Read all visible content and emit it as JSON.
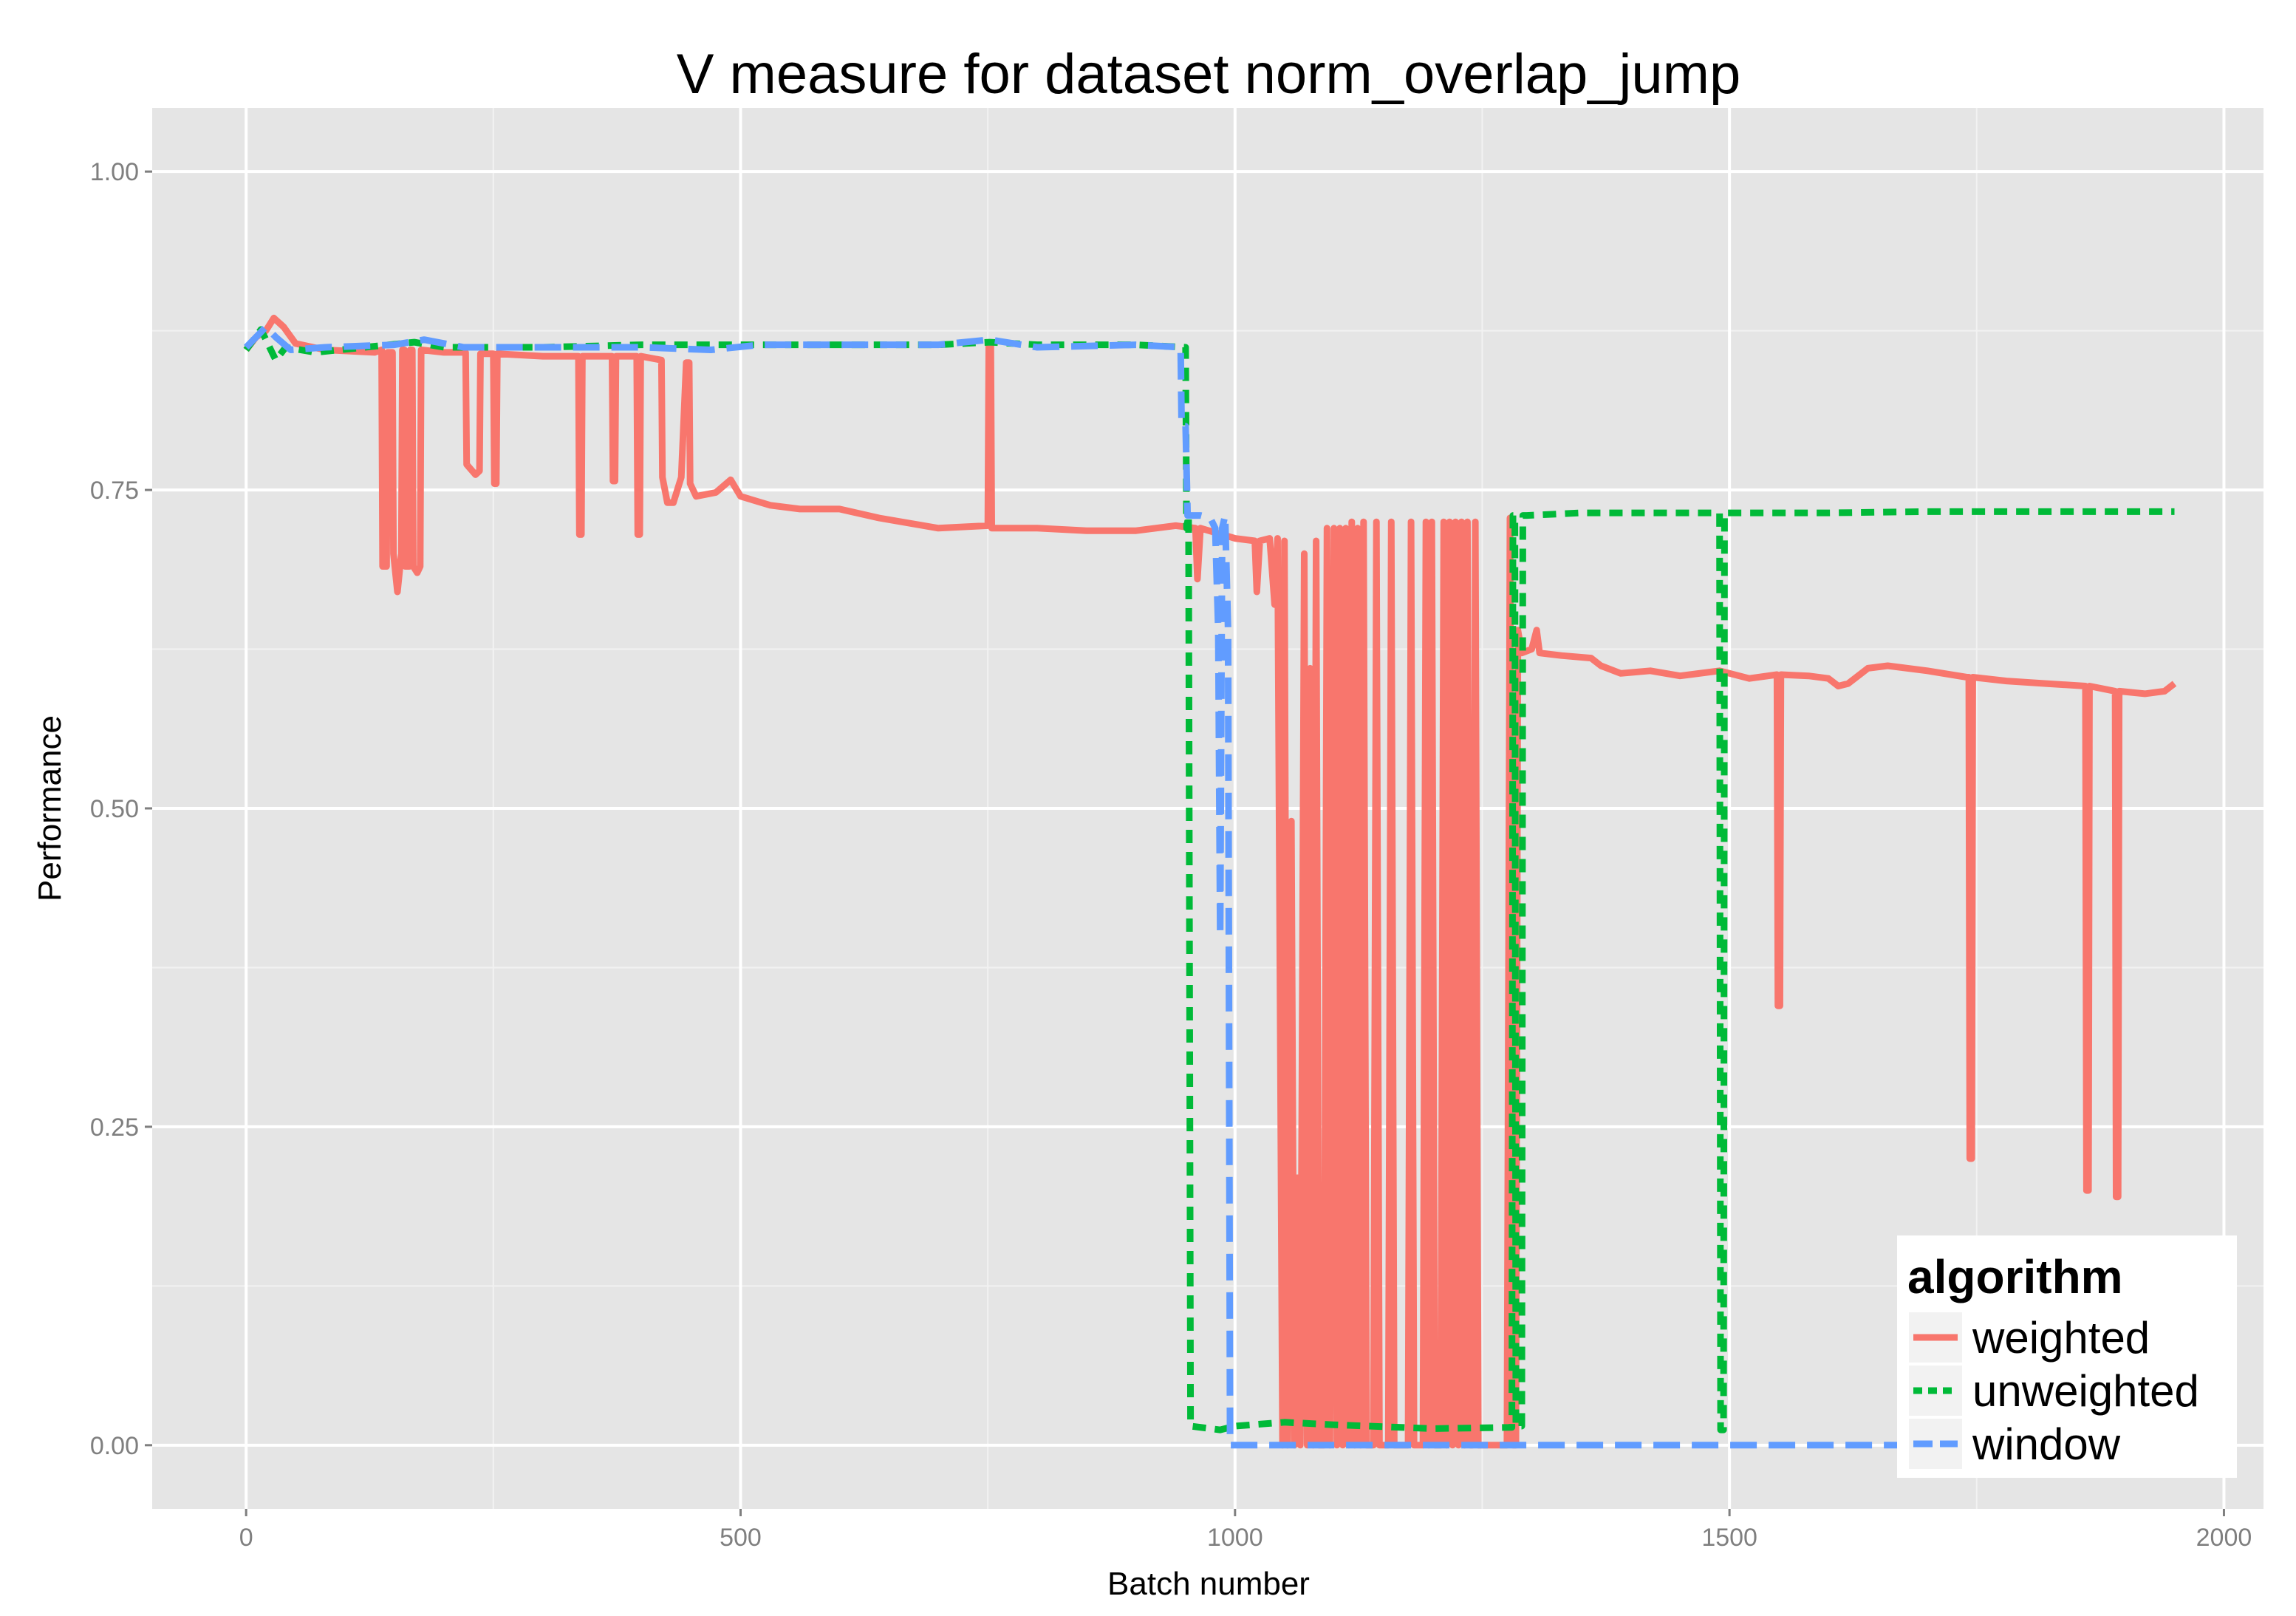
{
  "chart_data": {
    "type": "line",
    "title": "V measure for dataset norm_overlap_jump",
    "xlabel": "Batch number",
    "ylabel": "Performance",
    "xlim": [
      -95,
      2040
    ],
    "ylim": [
      -0.05,
      1.05
    ],
    "x_ticks": [
      0,
      500,
      1000,
      1500,
      2000
    ],
    "x_tick_labels": [
      "0",
      "500",
      "1000",
      "1500",
      "2000"
    ],
    "y_ticks": [
      0,
      0.25,
      0.5,
      0.75,
      1
    ],
    "y_tick_labels": [
      "0.00",
      "0.25",
      "0.50",
      "0.75",
      "1.00"
    ],
    "grid": true,
    "legend": {
      "title": "algorithm",
      "position": "bottom-right",
      "entries": [
        {
          "label": "weighted",
          "color": "#F8766D",
          "dash": "solid"
        },
        {
          "label": "unweighted",
          "color": "#00BA38",
          "dash": "dashed"
        },
        {
          "label": "window",
          "color": "#619CFF",
          "dash": "longdash"
        }
      ]
    },
    "series": [
      {
        "name": "weighted",
        "color": "#F8766D",
        "points": [
          [
            0,
            0.86
          ],
          [
            10,
            0.87
          ],
          [
            20,
            0.875
          ],
          [
            28,
            0.885
          ],
          [
            38,
            0.878
          ],
          [
            50,
            0.865
          ],
          [
            80,
            0.86
          ],
          [
            130,
            0.858
          ],
          [
            137,
            0.86
          ],
          [
            138,
            0.69
          ],
          [
            142,
            0.69
          ],
          [
            143,
            0.858
          ],
          [
            148,
            0.858
          ],
          [
            149,
            0.7
          ],
          [
            153,
            0.67
          ],
          [
            157,
            0.7
          ],
          [
            158,
            0.86
          ],
          [
            160,
            0.86
          ],
          [
            161,
            0.69
          ],
          [
            165,
            0.69
          ],
          [
            166,
            0.86
          ],
          [
            168,
            0.86
          ],
          [
            169,
            0.69
          ],
          [
            173,
            0.685
          ],
          [
            176,
            0.69
          ],
          [
            177,
            0.86
          ],
          [
            200,
            0.858
          ],
          [
            222,
            0.858
          ],
          [
            223,
            0.77
          ],
          [
            232,
            0.762
          ],
          [
            236,
            0.765
          ],
          [
            237,
            0.857
          ],
          [
            250,
            0.857
          ],
          [
            251,
            0.755
          ],
          [
            253,
            0.755
          ],
          [
            254,
            0.857
          ],
          [
            300,
            0.855
          ],
          [
            336,
            0.855
          ],
          [
            337,
            0.715
          ],
          [
            339,
            0.715
          ],
          [
            340,
            0.855
          ],
          [
            370,
            0.855
          ],
          [
            371,
            0.757
          ],
          [
            373,
            0.757
          ],
          [
            374,
            0.855
          ],
          [
            395,
            0.855
          ],
          [
            396,
            0.715
          ],
          [
            398,
            0.715
          ],
          [
            399,
            0.855
          ],
          [
            420,
            0.852
          ],
          [
            421,
            0.76
          ],
          [
            426,
            0.74
          ],
          [
            432,
            0.74
          ],
          [
            440,
            0.76
          ],
          [
            445,
            0.85
          ],
          [
            448,
            0.85
          ],
          [
            449,
            0.755
          ],
          [
            455,
            0.745
          ],
          [
            475,
            0.748
          ],
          [
            490,
            0.758
          ],
          [
            500,
            0.745
          ],
          [
            530,
            0.738
          ],
          [
            560,
            0.735
          ],
          [
            600,
            0.735
          ],
          [
            640,
            0.728
          ],
          [
            700,
            0.72
          ],
          [
            750,
            0.722
          ],
          [
            751,
            0.865
          ],
          [
            753,
            0.865
          ],
          [
            754,
            0.72
          ],
          [
            800,
            0.72
          ],
          [
            850,
            0.718
          ],
          [
            900,
            0.718
          ],
          [
            940,
            0.722
          ],
          [
            960,
            0.72
          ],
          [
            962,
            0.68
          ],
          [
            965,
            0.72
          ],
          [
            1000,
            0.712
          ],
          [
            1020,
            0.71
          ],
          [
            1022,
            0.67
          ],
          [
            1025,
            0.71
          ],
          [
            1035,
            0.712
          ],
          [
            1040,
            0.66
          ],
          [
            1043,
            0.712
          ],
          [
            1048,
            0.0
          ],
          [
            1050,
            0.71
          ],
          [
            1053,
            0.0
          ],
          [
            1057,
            0.49
          ],
          [
            1060,
            0.0
          ],
          [
            1063,
            0.21
          ],
          [
            1066,
            0.0
          ],
          [
            1070,
            0.7
          ],
          [
            1073,
            0.0
          ],
          [
            1076,
            0.61
          ],
          [
            1079,
            0.0
          ],
          [
            1082,
            0.71
          ],
          [
            1085,
            0.0
          ],
          [
            1090,
            0.0
          ],
          [
            1093,
            0.72
          ],
          [
            1096,
            0.0
          ],
          [
            1100,
            0.72
          ],
          [
            1103,
            0.0
          ],
          [
            1106,
            0.72
          ],
          [
            1109,
            0.0
          ],
          [
            1112,
            0.72
          ],
          [
            1115,
            0.0
          ],
          [
            1118,
            0.725
          ],
          [
            1121,
            0.0
          ],
          [
            1124,
            0.72
          ],
          [
            1127,
            0.0
          ],
          [
            1130,
            0.725
          ],
          [
            1133,
            0.0
          ],
          [
            1140,
            0.0
          ],
          [
            1143,
            0.725
          ],
          [
            1146,
            0.0
          ],
          [
            1155,
            0.0
          ],
          [
            1158,
            0.725
          ],
          [
            1161,
            0.0
          ],
          [
            1175,
            0.0
          ],
          [
            1178,
            0.725
          ],
          [
            1181,
            0.0
          ],
          [
            1190,
            0.0
          ],
          [
            1193,
            0.725
          ],
          [
            1196,
            0.0
          ],
          [
            1199,
            0.725
          ],
          [
            1202,
            0.0
          ],
          [
            1208,
            0.0
          ],
          [
            1211,
            0.725
          ],
          [
            1214,
            0.0
          ],
          [
            1217,
            0.725
          ],
          [
            1220,
            0.0
          ],
          [
            1223,
            0.725
          ],
          [
            1226,
            0.0
          ],
          [
            1229,
            0.725
          ],
          [
            1232,
            0.0
          ],
          [
            1235,
            0.725
          ],
          [
            1238,
            0.0
          ],
          [
            1240,
            0.0
          ],
          [
            1243,
            0.725
          ],
          [
            1246,
            0.0
          ],
          [
            1275,
            0.0
          ],
          [
            1278,
            0.728
          ],
          [
            1281,
            0.0
          ],
          [
            1284,
            0.0
          ],
          [
            1286,
            0.64
          ],
          [
            1290,
            0.622
          ],
          [
            1300,
            0.625
          ],
          [
            1305,
            0.64
          ],
          [
            1308,
            0.622
          ],
          [
            1330,
            0.62
          ],
          [
            1360,
            0.618
          ],
          [
            1370,
            0.612
          ],
          [
            1390,
            0.606
          ],
          [
            1420,
            0.608
          ],
          [
            1450,
            0.604
          ],
          [
            1490,
            0.608
          ],
          [
            1520,
            0.602
          ],
          [
            1548,
            0.605
          ],
          [
            1549,
            0.345
          ],
          [
            1551,
            0.345
          ],
          [
            1552,
            0.605
          ],
          [
            1580,
            0.604
          ],
          [
            1600,
            0.602
          ],
          [
            1610,
            0.596
          ],
          [
            1620,
            0.598
          ],
          [
            1640,
            0.61
          ],
          [
            1660,
            0.612
          ],
          [
            1700,
            0.608
          ],
          [
            1740,
            0.603
          ],
          [
            1742,
            0.603
          ],
          [
            1743,
            0.225
          ],
          [
            1745,
            0.225
          ],
          [
            1746,
            0.603
          ],
          [
            1780,
            0.6
          ],
          [
            1820,
            0.598
          ],
          [
            1860,
            0.596
          ],
          [
            1861,
            0.2
          ],
          [
            1863,
            0.2
          ],
          [
            1864,
            0.596
          ],
          [
            1890,
            0.592
          ],
          [
            1891,
            0.195
          ],
          [
            1893,
            0.195
          ],
          [
            1894,
            0.592
          ],
          [
            1920,
            0.59
          ],
          [
            1940,
            0.592
          ],
          [
            1950,
            0.598
          ]
        ]
      },
      {
        "name": "unweighted",
        "color": "#00BA38",
        "points": [
          [
            0,
            0.86
          ],
          [
            15,
            0.876
          ],
          [
            25,
            0.86
          ],
          [
            30,
            0.852
          ],
          [
            40,
            0.862
          ],
          [
            70,
            0.858
          ],
          [
            120,
            0.862
          ],
          [
            170,
            0.866
          ],
          [
            200,
            0.862
          ],
          [
            300,
            0.862
          ],
          [
            400,
            0.864
          ],
          [
            500,
            0.864
          ],
          [
            600,
            0.864
          ],
          [
            700,
            0.864
          ],
          [
            752,
            0.866
          ],
          [
            800,
            0.864
          ],
          [
            900,
            0.864
          ],
          [
            950,
            0.862
          ],
          [
            951,
            0.72
          ],
          [
            953,
            0.73
          ],
          [
            955,
            0.015
          ],
          [
            985,
            0.012
          ],
          [
            1000,
            0.015
          ],
          [
            1050,
            0.018
          ],
          [
            1100,
            0.016
          ],
          [
            1200,
            0.013
          ],
          [
            1280,
            0.014
          ],
          [
            1281,
            0.73
          ],
          [
            1283,
            0.73
          ],
          [
            1284,
            0.015
          ],
          [
            1290,
            0.015
          ],
          [
            1291,
            0.73
          ],
          [
            1295,
            0.73
          ],
          [
            1350,
            0.732
          ],
          [
            1490,
            0.732
          ],
          [
            1491,
            0.012
          ],
          [
            1494,
            0.012
          ],
          [
            1495,
            0.732
          ],
          [
            1600,
            0.732
          ],
          [
            1700,
            0.733
          ],
          [
            1800,
            0.733
          ],
          [
            1950,
            0.733
          ]
        ]
      },
      {
        "name": "window",
        "color": "#619CFF",
        "points": [
          [
            0,
            0.862
          ],
          [
            10,
            0.87
          ],
          [
            20,
            0.878
          ],
          [
            30,
            0.87
          ],
          [
            45,
            0.86
          ],
          [
            80,
            0.862
          ],
          [
            150,
            0.864
          ],
          [
            180,
            0.868
          ],
          [
            220,
            0.862
          ],
          [
            300,
            0.862
          ],
          [
            400,
            0.862
          ],
          [
            470,
            0.86
          ],
          [
            520,
            0.864
          ],
          [
            600,
            0.864
          ],
          [
            700,
            0.864
          ],
          [
            752,
            0.868
          ],
          [
            800,
            0.862
          ],
          [
            900,
            0.864
          ],
          [
            945,
            0.862
          ],
          [
            946,
            0.8
          ],
          [
            950,
            0.8
          ],
          [
            952,
            0.73
          ],
          [
            965,
            0.73
          ],
          [
            975,
            0.728
          ],
          [
            980,
            0.72
          ],
          [
            983,
            0.64
          ],
          [
            985,
            0.4
          ],
          [
            987,
            0.72
          ],
          [
            990,
            0.73
          ],
          [
            993,
            0.64
          ],
          [
            995,
            0.0
          ],
          [
            1000,
            0.0
          ],
          [
            1100,
            0.0
          ],
          [
            1200,
            0.0
          ],
          [
            1300,
            0.0
          ],
          [
            1400,
            0.0
          ],
          [
            1500,
            0.0
          ],
          [
            1600,
            0.0
          ],
          [
            1700,
            0.0
          ],
          [
            1800,
            0.0
          ],
          [
            1950,
            0.0
          ]
        ]
      }
    ]
  }
}
